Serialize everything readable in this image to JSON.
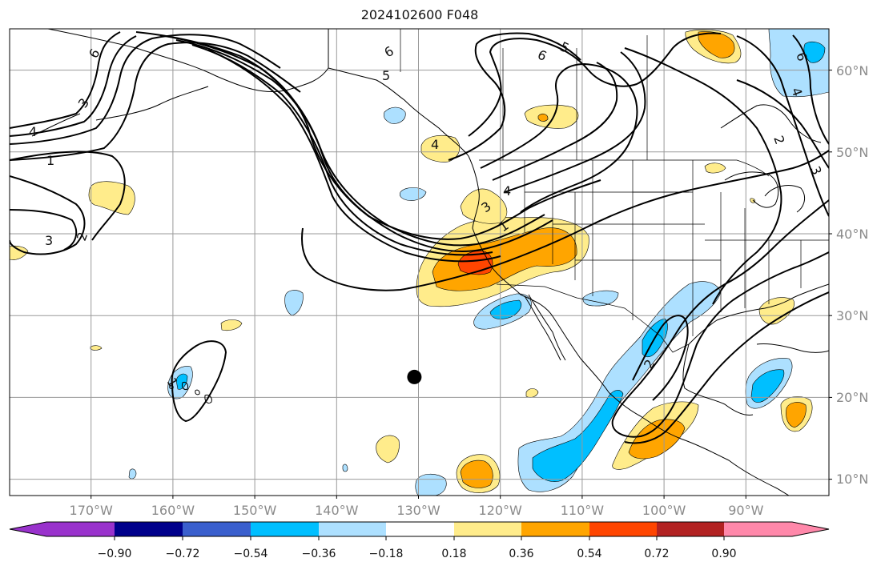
{
  "title": "2024102600 F048",
  "map": {
    "projection": "plate-carree",
    "lon_range": [
      -180,
      -80
    ],
    "lat_range": [
      8,
      65
    ],
    "grid": true,
    "features": [
      "coastlines",
      "country borders",
      "US state borders"
    ],
    "marker": {
      "lon": -130,
      "lat": 22.5,
      "color": "#000000"
    },
    "lon_ticks": [
      "170°W",
      "160°W",
      "150°W",
      "140°W",
      "130°W",
      "120°W",
      "110°W",
      "100°W",
      "90°W"
    ],
    "lat_ticks": [
      "10°N",
      "20°N",
      "30°N",
      "40°N",
      "50°N",
      "60°N"
    ],
    "contour_labels": [
      "6",
      "5",
      "4",
      "3",
      "2",
      "1",
      "3",
      "2",
      "1",
      "4",
      "3",
      "2",
      "6",
      "5",
      "4",
      "3",
      "2",
      "1",
      "2",
      "1"
    ]
  },
  "colorbar": {
    "orientation": "horizontal",
    "extend": "both",
    "ticks": [
      "−0.90",
      "−0.72",
      "−0.54",
      "−0.36",
      "−0.18",
      "0.18",
      "0.36",
      "0.54",
      "0.72",
      "0.90"
    ],
    "colors": [
      "#9932CC",
      "#00008B",
      "#3A5FCD",
      "#00BFFF",
      "#ADE0FF",
      "#FFFFFF",
      "#FFEC8B",
      "#FFA500",
      "#FF4500",
      "#B22222",
      "#FF88AA"
    ]
  }
}
